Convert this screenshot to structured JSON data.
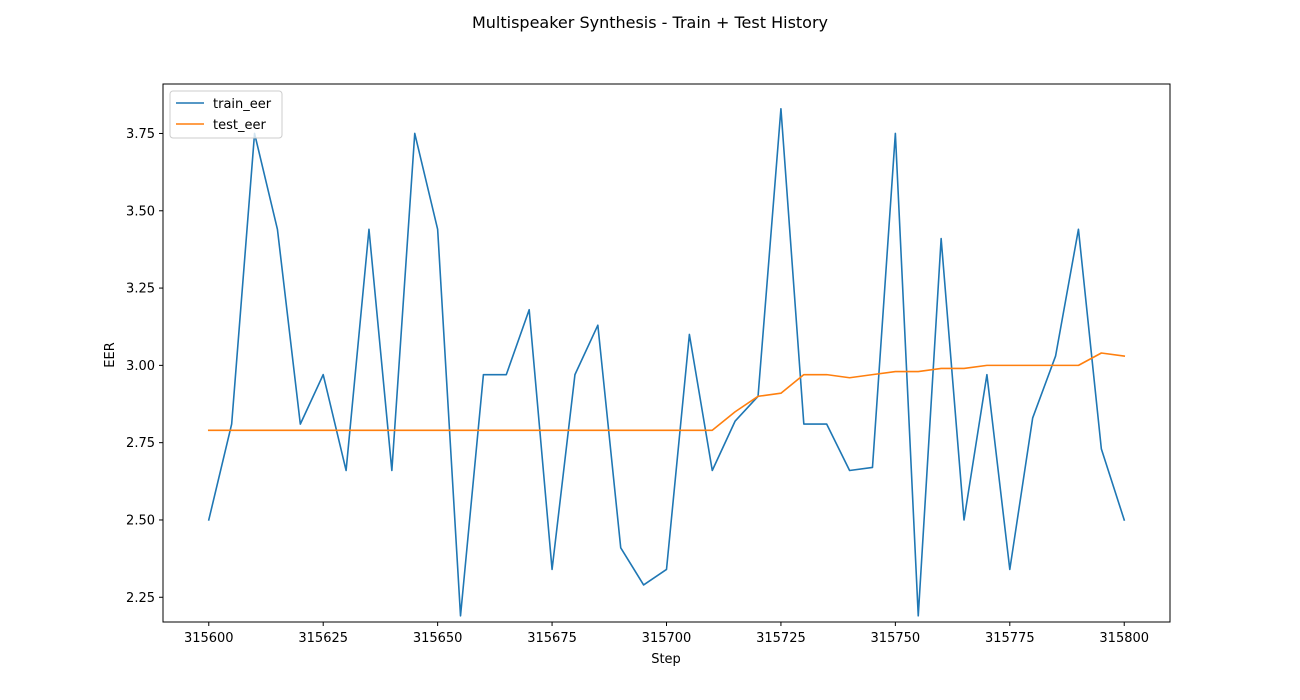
{
  "chart_data": {
    "type": "line",
    "title": "Multispeaker Synthesis - Train + Test History",
    "xlabel": "Step",
    "ylabel": "EER",
    "xlim": [
      315590,
      315810
    ],
    "ylim": [
      2.17,
      3.91
    ],
    "xticks": [
      315600,
      315625,
      315650,
      315675,
      315700,
      315725,
      315750,
      315775,
      315800
    ],
    "xtick_labels": [
      "315600",
      "315625",
      "315650",
      "315675",
      "315700",
      "315725",
      "315750",
      "315775",
      "315800"
    ],
    "yticks": [
      2.25,
      2.5,
      2.75,
      3.0,
      3.25,
      3.5,
      3.75
    ],
    "ytick_labels": [
      "2.25",
      "2.50",
      "2.75",
      "3.00",
      "3.25",
      "3.50",
      "3.75"
    ],
    "grid": false,
    "legend_position": "upper-left",
    "x": [
      315600,
      315605,
      315610,
      315615,
      315620,
      315625,
      315630,
      315635,
      315640,
      315645,
      315650,
      315655,
      315660,
      315665,
      315670,
      315675,
      315680,
      315685,
      315690,
      315695,
      315700,
      315705,
      315710,
      315715,
      315720,
      315725,
      315730,
      315735,
      315740,
      315745,
      315750,
      315755,
      315760,
      315765,
      315770,
      315775,
      315780,
      315785,
      315790,
      315795,
      315800
    ],
    "series": [
      {
        "name": "train_eer",
        "color": "#1f77b4",
        "values": [
          2.5,
          2.81,
          3.75,
          3.44,
          2.81,
          2.97,
          2.66,
          3.44,
          2.66,
          3.75,
          3.44,
          2.19,
          2.97,
          2.97,
          3.18,
          2.34,
          2.97,
          3.13,
          2.41,
          2.29,
          2.34,
          3.1,
          2.66,
          2.82,
          2.9,
          3.83,
          2.81,
          2.81,
          2.66,
          2.67,
          3.75,
          2.19,
          3.41,
          2.5,
          2.97,
          2.34,
          2.83,
          3.03,
          3.44,
          2.73,
          2.5
        ]
      },
      {
        "name": "test_eer",
        "color": "#ff7f0e",
        "values": [
          2.79,
          2.79,
          2.79,
          2.79,
          2.79,
          2.79,
          2.79,
          2.79,
          2.79,
          2.79,
          2.79,
          2.79,
          2.79,
          2.79,
          2.79,
          2.79,
          2.79,
          2.79,
          2.79,
          2.79,
          2.79,
          2.79,
          2.79,
          2.85,
          2.9,
          2.91,
          2.97,
          2.97,
          2.96,
          2.97,
          2.98,
          2.98,
          2.99,
          2.99,
          3.0,
          3.0,
          3.0,
          3.0,
          3.0,
          3.04,
          3.03
        ]
      }
    ]
  }
}
